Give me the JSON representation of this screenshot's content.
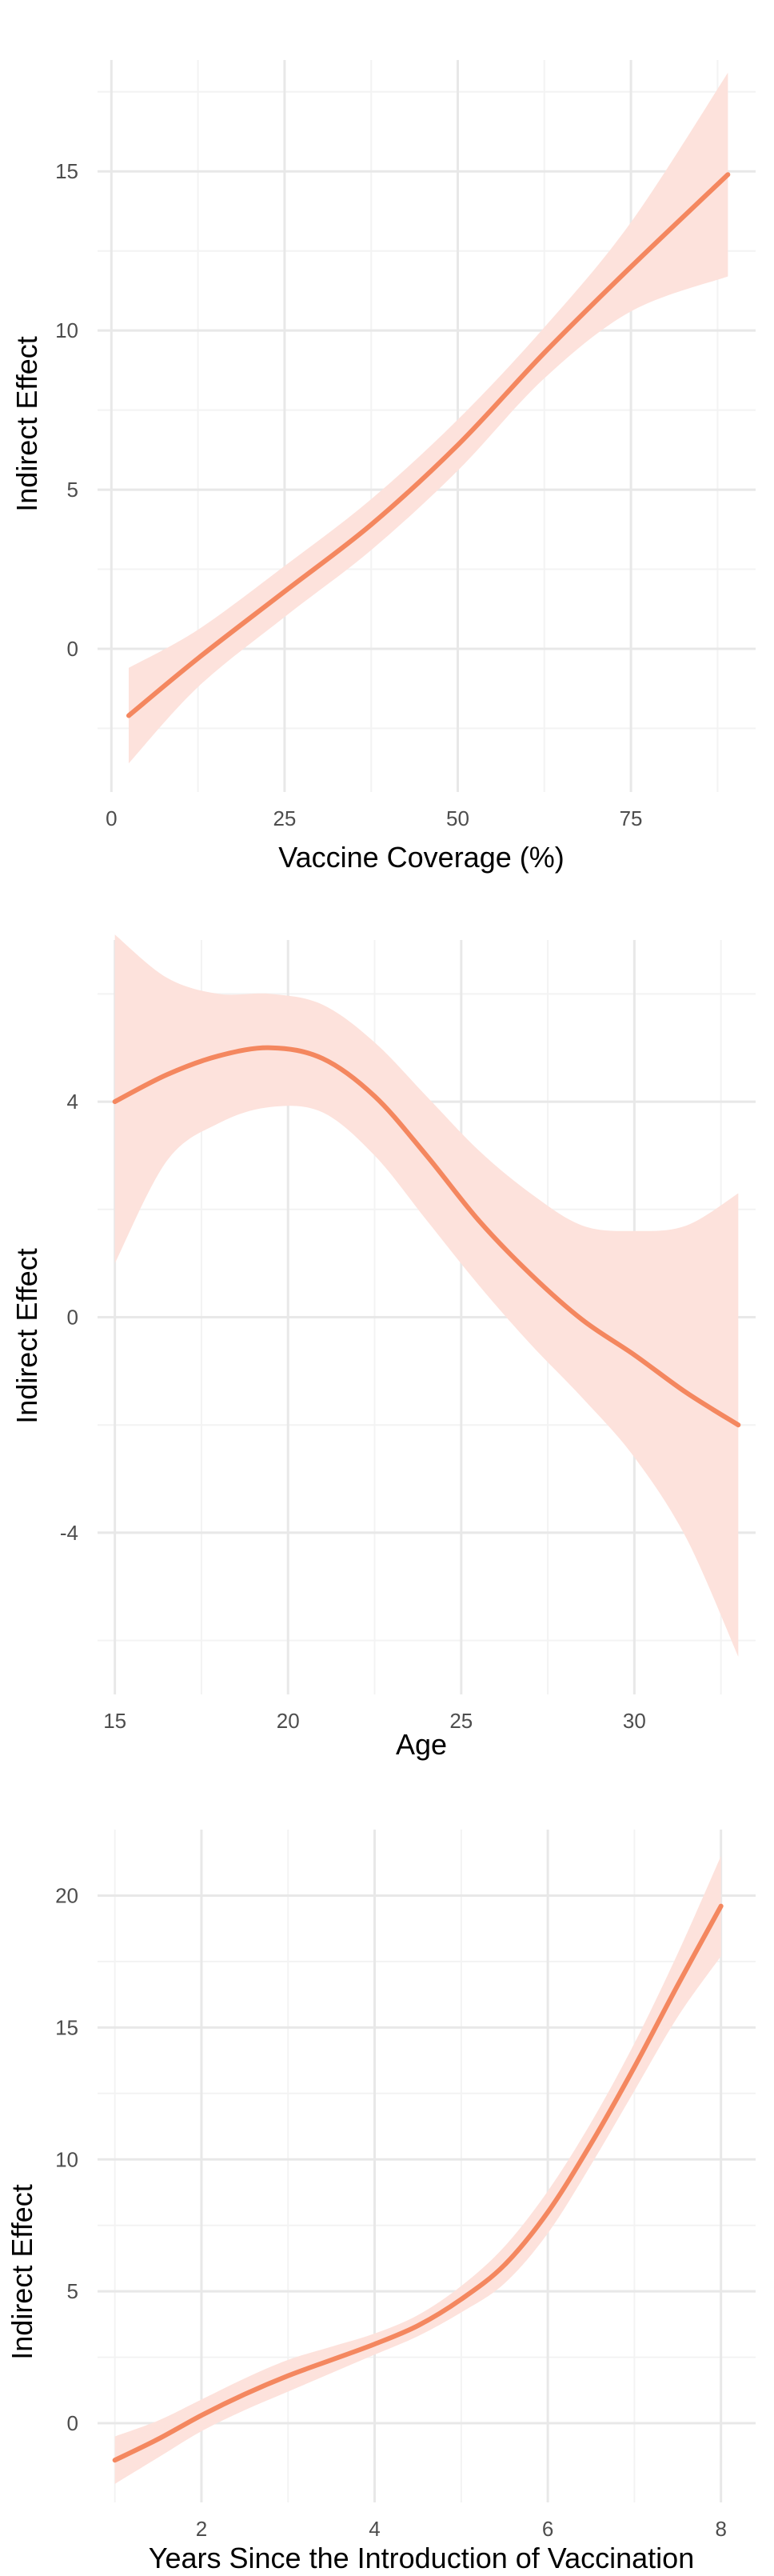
{
  "colors": {
    "line": "#F4875F",
    "ribbon": "#FDE2DC",
    "grid_major": "#E8E8E8",
    "grid_minor": "#F3F3F3"
  },
  "chart_data": [
    {
      "type": "line",
      "xlabel": "Vaccine Coverage (%)",
      "ylabel": "Indirect Effect",
      "xlim": [
        -2,
        93
      ],
      "ylim": [
        -4.5,
        18.5
      ],
      "xticks": [
        0,
        25,
        50,
        75
      ],
      "yticks": [
        0,
        5,
        10,
        15
      ],
      "xminor": [
        12.5,
        37.5,
        62.5,
        87.5
      ],
      "yminor": [
        -2.5,
        2.5,
        7.5,
        12.5,
        17.5
      ],
      "x": [
        2.5,
        12.5,
        25,
        37.5,
        50,
        62.5,
        75,
        89
      ],
      "y": [
        -2.1,
        -0.3,
        1.8,
        3.9,
        6.4,
        9.3,
        12.0,
        14.9
      ],
      "lower": [
        -3.6,
        -1.2,
        1.0,
        3.1,
        5.6,
        8.5,
        10.6,
        11.7
      ],
      "upper": [
        -0.6,
        0.6,
        2.6,
        4.7,
        7.2,
        10.1,
        13.4,
        18.1
      ],
      "grid": true,
      "legend": "none"
    },
    {
      "type": "line",
      "xlabel": "Age",
      "ylabel": "Indirect Effect",
      "xlim": [
        14.5,
        33.5
      ],
      "ylim": [
        -7.0,
        7.0
      ],
      "xticks": [
        15,
        20,
        25,
        30
      ],
      "yticks": [
        -4,
        0,
        4
      ],
      "xminor": [
        17.5,
        22.5,
        27.5,
        32.5
      ],
      "yminor": [
        -6,
        -2,
        2,
        6
      ],
      "x": [
        15,
        16.5,
        18,
        19.5,
        21,
        22.5,
        24,
        25.5,
        27,
        28.5,
        30,
        31.5,
        33
      ],
      "y": [
        4.0,
        4.5,
        4.85,
        5.0,
        4.8,
        4.1,
        3.0,
        1.8,
        0.8,
        -0.05,
        -0.7,
        -1.4,
        -2.0
      ],
      "lower": [
        1.0,
        2.9,
        3.6,
        3.9,
        3.8,
        3.0,
        1.8,
        0.6,
        -0.5,
        -1.5,
        -2.6,
        -4.1,
        -6.3
      ],
      "upper": [
        7.1,
        6.3,
        6.0,
        6.0,
        5.8,
        5.1,
        4.1,
        3.1,
        2.3,
        1.7,
        1.6,
        1.7,
        2.3
      ],
      "grid": true,
      "legend": "none"
    },
    {
      "type": "line",
      "xlabel": "Years Since the Introduction of Vaccination",
      "ylabel": "Indirect Effect",
      "xlim": [
        0.8,
        8.4
      ],
      "ylim": [
        -3.0,
        22.5
      ],
      "xticks": [
        2,
        4,
        6,
        8
      ],
      "yticks": [
        0,
        5,
        10,
        15,
        20
      ],
      "xminor": [
        1,
        3,
        5,
        7
      ],
      "yminor": [
        2.5,
        7.5,
        12.5,
        17.5
      ],
      "x": [
        1,
        1.5,
        2,
        2.5,
        3,
        3.5,
        4,
        4.5,
        5,
        5.5,
        6,
        6.5,
        7,
        7.5,
        8
      ],
      "y": [
        -1.4,
        -0.6,
        0.3,
        1.1,
        1.8,
        2.4,
        3.0,
        3.7,
        4.7,
        6.0,
        8.0,
        10.6,
        13.5,
        16.6,
        19.6
      ],
      "lower": [
        -2.3,
        -1.3,
        -0.3,
        0.5,
        1.2,
        1.9,
        2.6,
        3.3,
        4.2,
        5.3,
        7.2,
        9.8,
        12.6,
        15.4,
        17.7
      ],
      "upper": [
        -0.5,
        0.1,
        0.9,
        1.7,
        2.4,
        2.9,
        3.4,
        4.1,
        5.2,
        6.7,
        8.8,
        11.4,
        14.4,
        17.8,
        21.5
      ],
      "grid": true,
      "legend": "none"
    }
  ]
}
